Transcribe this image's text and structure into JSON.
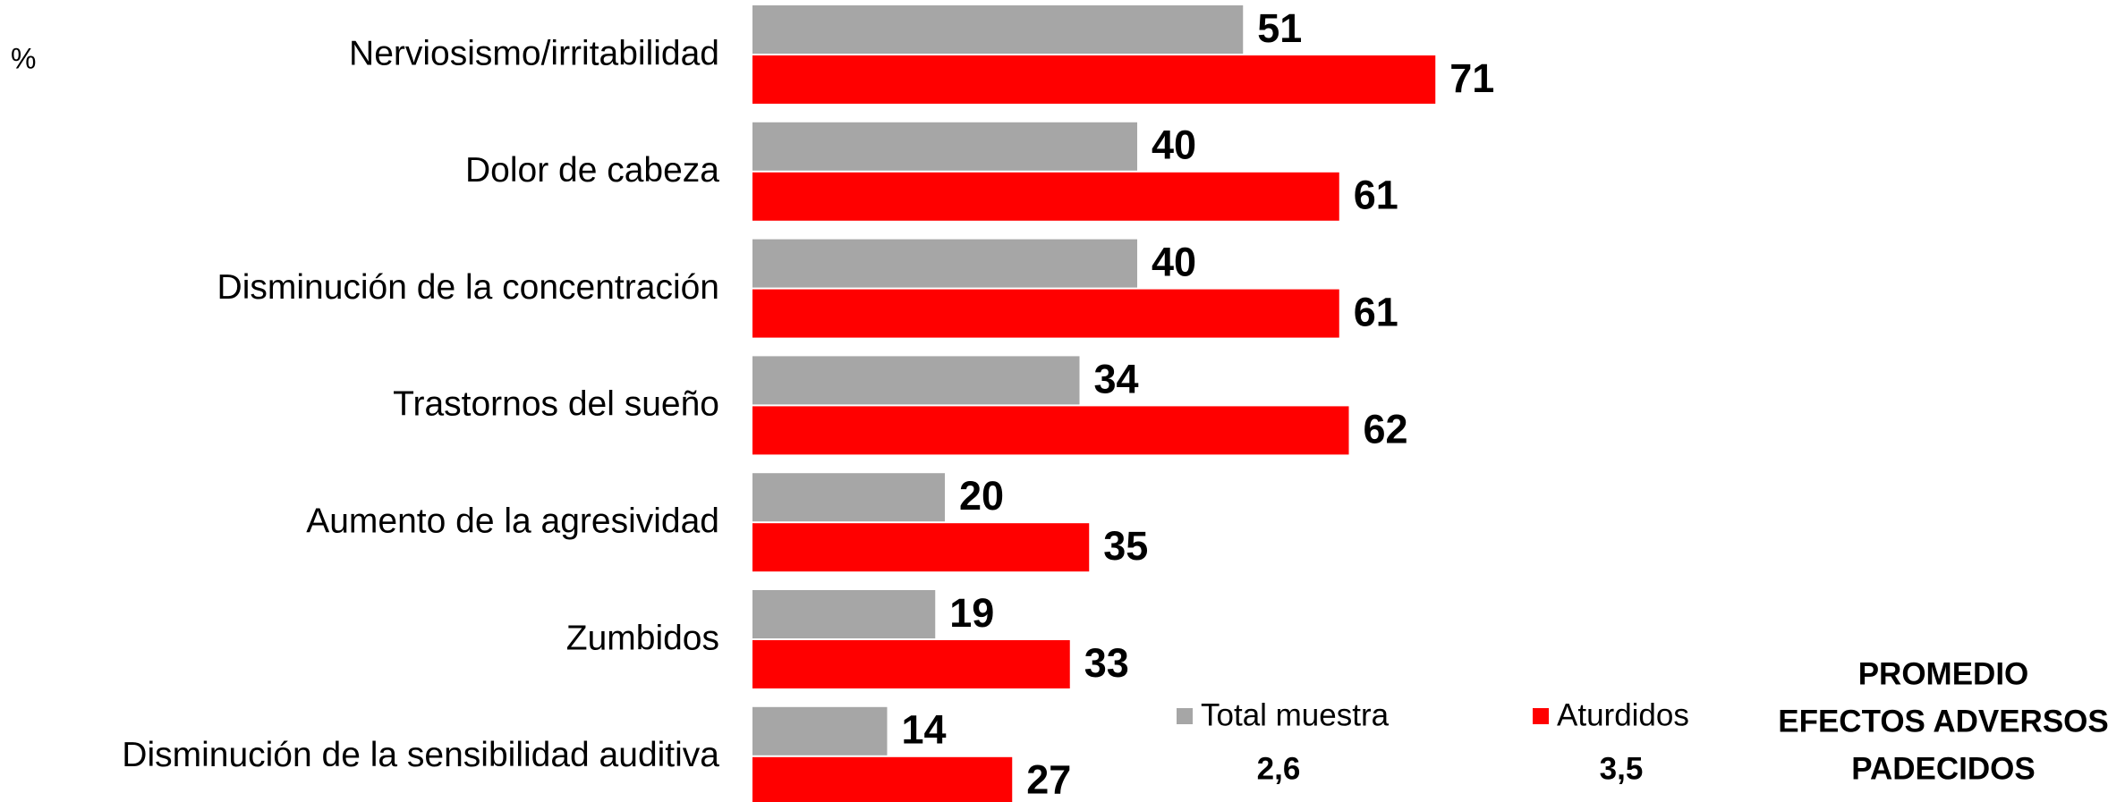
{
  "chart_data": {
    "type": "hbar",
    "unit_label": "%",
    "categories": [
      "Nerviosismo/irritabilidad",
      "Dolor de cabeza",
      "Disminución de la concentración",
      "Trastornos del sueño",
      "Aumento de la agresividad",
      "Zumbidos",
      "Disminución de la sensibilidad auditiva"
    ],
    "series": [
      {
        "name": "Total muestra",
        "color": "#a6a6a6",
        "values": [
          51,
          40,
          40,
          34,
          20,
          19,
          14
        ],
        "average": "2,6"
      },
      {
        "name": "Aturdidos",
        "color": "#ff0000",
        "values": [
          71,
          61,
          61,
          62,
          35,
          33,
          27
        ],
        "average": "3,5"
      }
    ],
    "annotation": [
      "PROMEDIO",
      "EFECTOS ADVERSOS",
      "PADECIDOS"
    ]
  }
}
